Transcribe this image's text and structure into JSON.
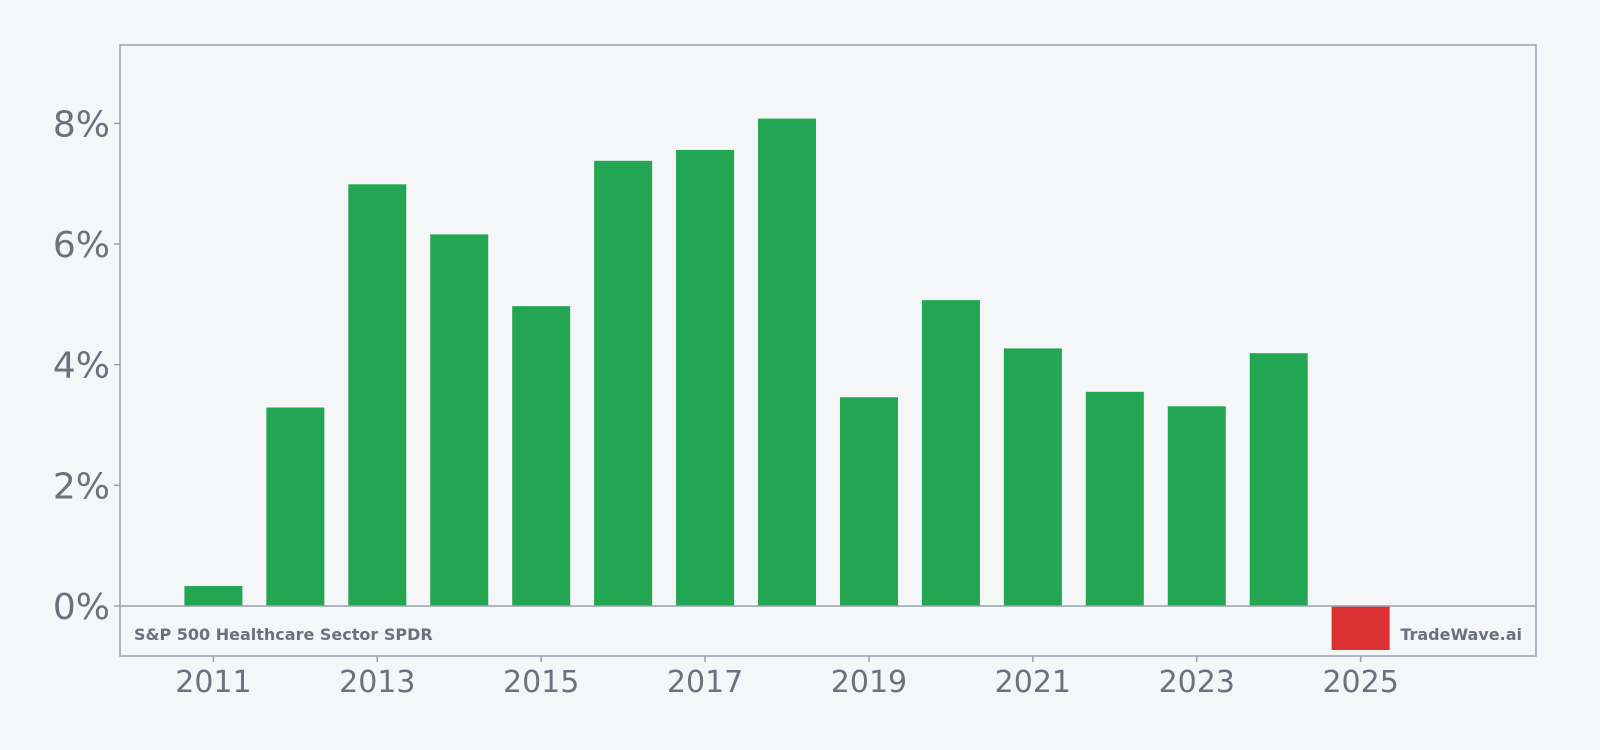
{
  "chart_data": {
    "type": "bar",
    "title": "",
    "xlabel": "",
    "ylabel": "",
    "categories": [
      2011,
      2012,
      2013,
      2014,
      2015,
      2016,
      2017,
      2018,
      2019,
      2020,
      2021,
      2022,
      2023,
      2024,
      2025
    ],
    "values": [
      0.33,
      3.29,
      6.99,
      6.16,
      4.97,
      7.38,
      7.56,
      8.08,
      3.46,
      5.07,
      4.27,
      3.55,
      3.31,
      4.19,
      -0.73
    ],
    "x_ticks": [
      "2011",
      "2013",
      "2015",
      "2017",
      "2019",
      "2021",
      "2023",
      "2025"
    ],
    "y_ticks": [
      {
        "value": 0,
        "label": "0%"
      },
      {
        "value": 2,
        "label": "2%"
      },
      {
        "value": 4,
        "label": "4%"
      },
      {
        "value": 6,
        "label": "6%"
      },
      {
        "value": 8,
        "label": "8%"
      }
    ],
    "ylim": [
      -0.83,
      9.3
    ],
    "xlim": [
      2009.86,
      2027.14
    ],
    "grid": false,
    "colors": {
      "positive": "#22a652",
      "negative": "#dc3132",
      "axis": "#9aa0ac",
      "text": "#6b717d",
      "background": "#f4f6f8"
    }
  },
  "annotations": {
    "left_label": "S&P 500 Healthcare Sector SPDR",
    "right_label": "TradeWave.ai"
  }
}
